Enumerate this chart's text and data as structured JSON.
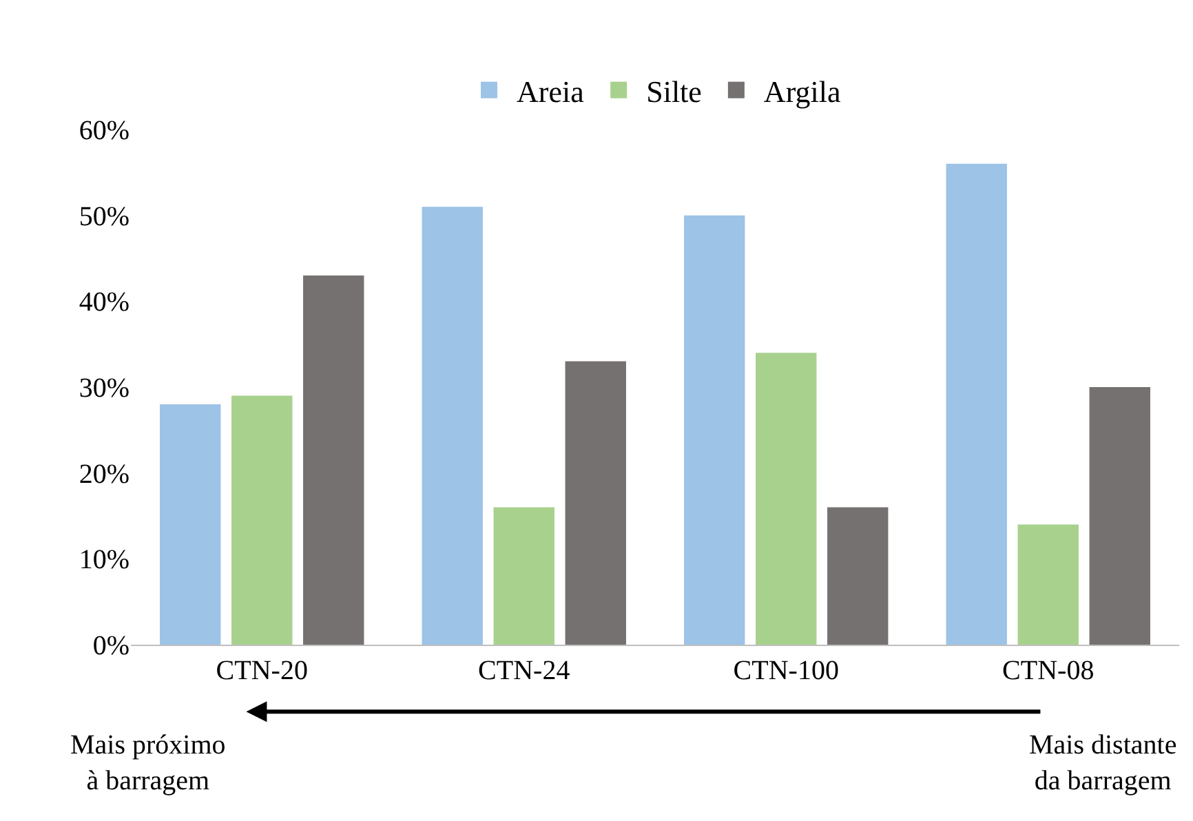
{
  "chart_data": {
    "type": "bar",
    "categories": [
      "CTN-20",
      "CTN-24",
      "CTN-100",
      "CTN-08"
    ],
    "series": [
      {
        "name": "Areia",
        "color": "#9dc3e6",
        "values": [
          28,
          51,
          50,
          56
        ]
      },
      {
        "name": "Silte",
        "color": "#a9d18e",
        "values": [
          29,
          16,
          34,
          14
        ]
      },
      {
        "name": "Argila",
        "color": "#767171",
        "values": [
          43,
          33,
          16,
          30
        ]
      }
    ],
    "ylim": [
      0,
      60
    ],
    "yticks": [
      {
        "value": 0,
        "label": "0%"
      },
      {
        "value": 10,
        "label": "10%"
      },
      {
        "value": 20,
        "label": "20%"
      },
      {
        "value": 30,
        "label": "30%"
      },
      {
        "value": 40,
        "label": "40%"
      },
      {
        "value": 50,
        "label": "50%"
      },
      {
        "value": 60,
        "label": "60%"
      }
    ],
    "grid": false,
    "legend": "top",
    "annotations": [
      "Mais próximo\nà barragem",
      "Mais distante\nda barragem"
    ]
  }
}
